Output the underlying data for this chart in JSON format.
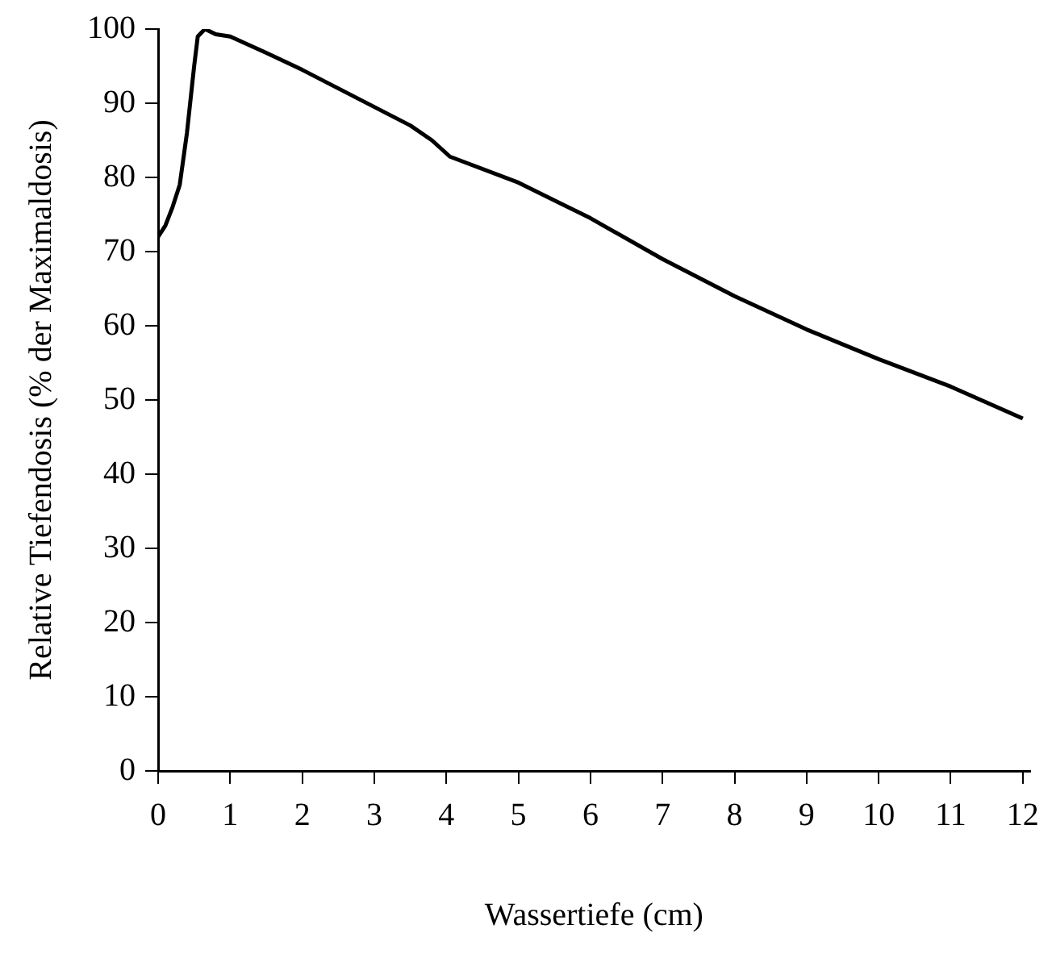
{
  "chart_data": {
    "type": "line",
    "xlabel": "Wassertiefe (cm)",
    "ylabel": "Relative Tiefendosis (% der Maximaldosis)",
    "x": [
      0,
      0.1,
      0.2,
      0.3,
      0.4,
      0.5,
      0.55,
      0.65,
      0.8,
      1,
      1.5,
      2,
      2.5,
      3,
      3.5,
      3.8,
      4.05,
      5,
      6,
      7,
      8,
      9,
      10,
      11,
      12
    ],
    "series": [
      {
        "color": "#000000",
        "values": [
          72,
          73.5,
          76,
          79,
          86,
          95,
          99,
          100,
          99.3,
          99,
          96.8,
          94.5,
          92,
          89.5,
          87,
          85,
          82.8,
          79.3,
          74.5,
          69,
          64,
          59.5,
          55.5,
          51.8,
          47.5
        ]
      }
    ],
    "xlim": [
      0,
      12.1
    ],
    "xticks": [
      0,
      1,
      2,
      3,
      4,
      5,
      6,
      7,
      8,
      9,
      10,
      11,
      12
    ],
    "ylim": [
      0,
      100
    ],
    "yticks": [
      0,
      10,
      20,
      30,
      40,
      50,
      60,
      70,
      80,
      90,
      100
    ],
    "grid": false,
    "legend": false,
    "marker": "none",
    "line_style": "solid"
  }
}
